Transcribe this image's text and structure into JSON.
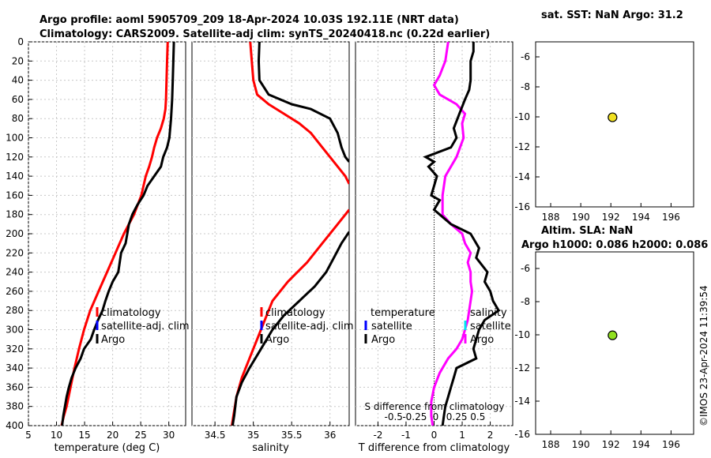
{
  "header": {
    "line1": "Argo profile: aoml 5905709_209 18-Apr-2024 10.03S 192.11E (NRT data)",
    "line2": "Climatology: CARS2009. Satellite-adj clim: synTS_20240418.nc (0.22d earlier)",
    "sst_title": "sat. SST: NaN Argo: 31.2",
    "sla_title1": "Altim. SLA: NaN",
    "sla_title2": "Argo h1000: 0.086 h2000: 0.086",
    "timestamp": "©IMOS 23-Apr-2024 11:39:54"
  },
  "colors": {
    "climatology": "#ff0000",
    "satellite": "#0000ff",
    "argo": "#000000",
    "salinity": "#ff00ff",
    "sat_salinity": "#00e5ee",
    "sst_marker": "#f0e020",
    "sla_marker": "#90e020"
  },
  "chart_data": [
    {
      "type": "line",
      "id": "temperature",
      "xlabel": "temperature (deg C)",
      "ylabel": "",
      "xlim": [
        5,
        33
      ],
      "ylim": [
        0,
        400
      ],
      "xticks": [
        5,
        10,
        15,
        20,
        25,
        30
      ],
      "yticks": [
        0,
        20,
        40,
        60,
        80,
        100,
        120,
        140,
        160,
        180,
        200,
        220,
        240,
        260,
        280,
        300,
        320,
        340,
        360,
        380,
        400
      ],
      "legend": [
        "climatology",
        "satellite-adj. clim",
        "Argo"
      ],
      "series": [
        {
          "name": "climatology",
          "points": [
            [
              29.8,
              0
            ],
            [
              29.7,
              20
            ],
            [
              29.6,
              40
            ],
            [
              29.5,
              60
            ],
            [
              29.4,
              70
            ],
            [
              29.1,
              80
            ],
            [
              28.6,
              90
            ],
            [
              27.9,
              100
            ],
            [
              27.4,
              110
            ],
            [
              27.0,
              120
            ],
            [
              26.5,
              130
            ],
            [
              25.9,
              140
            ],
            [
              25.1,
              160
            ],
            [
              23.8,
              180
            ],
            [
              22.0,
              200
            ],
            [
              20.5,
              220
            ],
            [
              19.0,
              240
            ],
            [
              17.5,
              260
            ],
            [
              16.0,
              280
            ],
            [
              14.9,
              300
            ],
            [
              14.0,
              320
            ],
            [
              13.2,
              340
            ],
            [
              12.5,
              360
            ],
            [
              11.8,
              380
            ],
            [
              11.3,
              390
            ],
            [
              10.9,
              400
            ]
          ]
        },
        {
          "name": "Argo",
          "points": [
            [
              30.9,
              0
            ],
            [
              30.8,
              20
            ],
            [
              30.7,
              40
            ],
            [
              30.6,
              60
            ],
            [
              30.4,
              80
            ],
            [
              30.1,
              100
            ],
            [
              29.7,
              110
            ],
            [
              29.0,
              120
            ],
            [
              28.6,
              130
            ],
            [
              27.4,
              140
            ],
            [
              26.2,
              150
            ],
            [
              25.5,
              160
            ],
            [
              24.4,
              170
            ],
            [
              23.5,
              180
            ],
            [
              22.9,
              190
            ],
            [
              22.6,
              200
            ],
            [
              22.3,
              210
            ],
            [
              21.5,
              220
            ],
            [
              21.0,
              240
            ],
            [
              20.0,
              250
            ],
            [
              19.3,
              260
            ],
            [
              18.7,
              270
            ],
            [
              18.2,
              280
            ],
            [
              17.4,
              290
            ],
            [
              16.7,
              300
            ],
            [
              16.1,
              310
            ],
            [
              14.9,
              320
            ],
            [
              14.3,
              330
            ],
            [
              13.4,
              340
            ],
            [
              12.7,
              350
            ],
            [
              12.2,
              360
            ],
            [
              11.8,
              370
            ],
            [
              11.5,
              380
            ],
            [
              11.2,
              390
            ],
            [
              11.0,
              400
            ]
          ]
        }
      ]
    },
    {
      "type": "line",
      "id": "salinity",
      "xlabel": "salinity",
      "ylabel": "",
      "xlim": [
        34.2,
        36.25
      ],
      "ylim": [
        0,
        400
      ],
      "xticks": [
        34.5,
        35,
        35.5,
        36
      ],
      "legend": [
        "climatology",
        "satellite-adj. clim",
        "Argo"
      ],
      "series": [
        {
          "name": "climatology",
          "points": [
            [
              34.96,
              0
            ],
            [
              34.98,
              20
            ],
            [
              35.0,
              40
            ],
            [
              35.05,
              55
            ],
            [
              35.2,
              65
            ],
            [
              35.4,
              75
            ],
            [
              35.6,
              85
            ],
            [
              35.75,
              95
            ],
            [
              35.9,
              110
            ],
            [
              36.05,
              125
            ],
            [
              36.2,
              140
            ],
            [
              36.25,
              148
            ]
          ],
          "points_lower": [
            [
              36.25,
              175
            ],
            [
              36.1,
              190
            ],
            [
              35.9,
              210
            ],
            [
              35.7,
              230
            ],
            [
              35.45,
              250
            ],
            [
              35.25,
              270
            ],
            [
              35.15,
              290
            ],
            [
              35.05,
              310
            ],
            [
              34.95,
              330
            ],
            [
              34.85,
              350
            ],
            [
              34.78,
              370
            ],
            [
              34.74,
              390
            ],
            [
              34.72,
              400
            ]
          ]
        },
        {
          "name": "Argo",
          "points": [
            [
              35.08,
              0
            ],
            [
              35.07,
              20
            ],
            [
              35.08,
              40
            ],
            [
              35.2,
              55
            ],
            [
              35.5,
              65
            ],
            [
              35.75,
              70
            ],
            [
              36.0,
              80
            ],
            [
              36.1,
              95
            ],
            [
              36.15,
              110
            ],
            [
              36.2,
              120
            ],
            [
              36.25,
              125
            ]
          ],
          "points_lower": [
            [
              36.25,
              198
            ],
            [
              36.15,
              210
            ],
            [
              36.05,
              225
            ],
            [
              35.95,
              240
            ],
            [
              35.8,
              255
            ],
            [
              35.6,
              270
            ],
            [
              35.4,
              285
            ],
            [
              35.25,
              300
            ],
            [
              35.1,
              320
            ],
            [
              34.95,
              340
            ],
            [
              34.85,
              355
            ],
            [
              34.78,
              370
            ],
            [
              34.75,
              390
            ],
            [
              34.73,
              400
            ]
          ]
        }
      ]
    },
    {
      "type": "line",
      "id": "difference",
      "xlabel": "T difference from climatology",
      "top_axis_label": "S difference from climatology",
      "xlim": [
        -2.8,
        2.8
      ],
      "ylim": [
        0,
        400
      ],
      "xticks": [
        -2,
        -1,
        0,
        1,
        2
      ],
      "top_ticks": [
        "-0.5",
        "-0.25",
        "0",
        "0.25",
        "0.5"
      ],
      "legend_left": [
        "temperature",
        "satellite",
        "Argo"
      ],
      "legend_right": [
        "salinity",
        "satellite",
        "Argo"
      ],
      "series": [
        {
          "name": "T difference (Argo)",
          "points": [
            [
              1.4,
              0
            ],
            [
              1.4,
              10
            ],
            [
              1.3,
              20
            ],
            [
              1.3,
              40
            ],
            [
              1.25,
              50
            ],
            [
              1.1,
              60
            ],
            [
              0.9,
              75
            ],
            [
              0.7,
              90
            ],
            [
              0.8,
              100
            ],
            [
              0.6,
              110
            ],
            [
              -0.3,
              120
            ],
            [
              0.0,
              125
            ],
            [
              -0.2,
              130
            ],
            [
              0.1,
              140
            ],
            [
              0.0,
              150
            ],
            [
              -0.1,
              160
            ],
            [
              0.2,
              165
            ],
            [
              0.0,
              175
            ],
            [
              0.2,
              180
            ],
            [
              0.6,
              190
            ],
            [
              1.3,
              200
            ],
            [
              1.6,
              215
            ],
            [
              1.5,
              225
            ],
            [
              1.9,
              240
            ],
            [
              1.8,
              250
            ],
            [
              2.0,
              260
            ],
            [
              2.1,
              270
            ],
            [
              2.3,
              280
            ],
            [
              1.8,
              290
            ],
            [
              1.6,
              300
            ],
            [
              1.5,
              310
            ],
            [
              1.4,
              320
            ],
            [
              1.5,
              330
            ],
            [
              0.8,
              340
            ],
            [
              0.7,
              350
            ],
            [
              0.6,
              360
            ],
            [
              0.5,
              370
            ],
            [
              0.4,
              380
            ],
            [
              0.35,
              390
            ],
            [
              0.3,
              400
            ]
          ]
        },
        {
          "name": "S difference (Argo)",
          "points": [
            [
              0.5,
              0
            ],
            [
              0.4,
              20
            ],
            [
              0.2,
              35
            ],
            [
              0.0,
              45
            ],
            [
              0.2,
              55
            ],
            [
              0.8,
              65
            ],
            [
              1.1,
              75
            ],
            [
              1.0,
              85
            ],
            [
              1.05,
              100
            ],
            [
              0.8,
              120
            ],
            [
              0.4,
              140
            ],
            [
              0.3,
              160
            ],
            [
              0.3,
              180
            ],
            [
              0.6,
              190
            ],
            [
              1.0,
              200
            ],
            [
              1.1,
              210
            ],
            [
              1.3,
              220
            ],
            [
              1.2,
              230
            ],
            [
              1.3,
              240
            ],
            [
              1.3,
              250
            ],
            [
              1.35,
              260
            ],
            [
              1.3,
              270
            ],
            [
              1.25,
              280
            ],
            [
              1.2,
              290
            ],
            [
              1.1,
              300
            ],
            [
              1.0,
              310
            ],
            [
              0.8,
              320
            ],
            [
              0.5,
              330
            ],
            [
              0.2,
              345
            ],
            [
              0.0,
              360
            ],
            [
              -0.1,
              375
            ],
            [
              -0.1,
              390
            ],
            [
              -0.05,
              400
            ]
          ]
        }
      ]
    },
    {
      "type": "scatter",
      "id": "sst",
      "title": "sat. SST: NaN Argo: 31.2",
      "xlim": [
        187,
        197.5
      ],
      "ylim": [
        -16,
        -5
      ],
      "xticks": [
        188,
        190,
        192,
        194,
        196
      ],
      "yticks": [
        -6,
        -8,
        -10,
        -12,
        -14,
        -16
      ],
      "points": [
        [
          192.11,
          -10.03
        ]
      ]
    },
    {
      "type": "scatter",
      "id": "sla",
      "title": "Altim. SLA: NaN",
      "xlim": [
        187,
        197.5
      ],
      "ylim": [
        -16,
        -5
      ],
      "xticks": [
        188,
        190,
        192,
        194,
        196
      ],
      "yticks": [
        -6,
        -8,
        -10,
        -12,
        -14,
        -16
      ],
      "points": [
        [
          192.11,
          -10.03
        ]
      ]
    }
  ]
}
